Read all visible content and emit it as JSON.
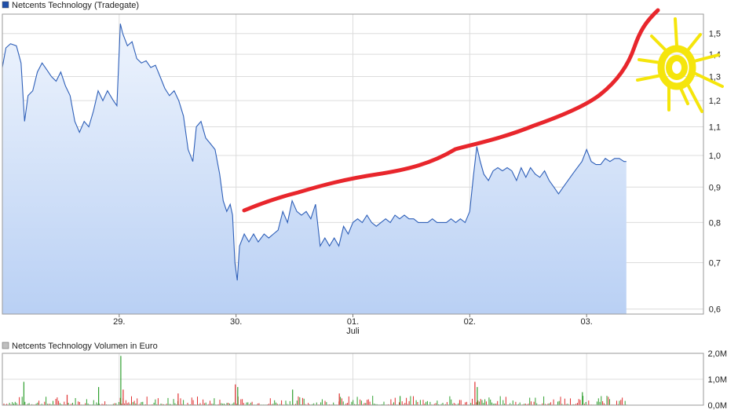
{
  "chart_data": [
    {
      "type": "area",
      "legend": "Netcents Technology (Tradegate)",
      "legend_color": "#1f4fa8",
      "line_color": "#2e5fb8",
      "fill_top": "#eef4fd",
      "fill_bottom": "#b9d0f4",
      "y_scale": "log",
      "ylim": [
        0.59,
        1.6
      ],
      "y_ticks": [
        {
          "value": 0.6,
          "label": "0,6"
        },
        {
          "value": 0.7,
          "label": "0,7"
        },
        {
          "value": 0.8,
          "label": "0,8"
        },
        {
          "value": 0.9,
          "label": "0,9"
        },
        {
          "value": 1.0,
          "label": "1,0"
        },
        {
          "value": 1.1,
          "label": "1,1"
        },
        {
          "value": 1.2,
          "label": "1,2"
        },
        {
          "value": 1.3,
          "label": "1,3"
        },
        {
          "value": 1.4,
          "label": "1,4"
        },
        {
          "value": 1.5,
          "label": "1,5"
        }
      ],
      "x_ticks": [
        {
          "pos": 1.0,
          "label": "29."
        },
        {
          "pos": 2.0,
          "label": "30."
        },
        {
          "pos": 3.0,
          "label": "01.",
          "sub": "Juli"
        },
        {
          "pos": 4.0,
          "label": "02."
        },
        {
          "pos": 5.0,
          "label": "03."
        }
      ],
      "xlim": [
        0.0,
        6.0
      ],
      "grid": true,
      "legend_position": "top-left",
      "points": [
        [
          0.0,
          1.34
        ],
        [
          0.03,
          1.43
        ],
        [
          0.07,
          1.45
        ],
        [
          0.12,
          1.44
        ],
        [
          0.16,
          1.36
        ],
        [
          0.19,
          1.12
        ],
        [
          0.22,
          1.22
        ],
        [
          0.26,
          1.24
        ],
        [
          0.3,
          1.32
        ],
        [
          0.34,
          1.36
        ],
        [
          0.38,
          1.33
        ],
        [
          0.42,
          1.3
        ],
        [
          0.46,
          1.28
        ],
        [
          0.5,
          1.32
        ],
        [
          0.54,
          1.26
        ],
        [
          0.58,
          1.22
        ],
        [
          0.62,
          1.12
        ],
        [
          0.66,
          1.08
        ],
        [
          0.7,
          1.12
        ],
        [
          0.74,
          1.1
        ],
        [
          0.78,
          1.16
        ],
        [
          0.82,
          1.24
        ],
        [
          0.86,
          1.2
        ],
        [
          0.9,
          1.24
        ],
        [
          0.95,
          1.2
        ],
        [
          0.98,
          1.18
        ],
        [
          1.01,
          1.55
        ],
        [
          1.03,
          1.5
        ],
        [
          1.07,
          1.44
        ],
        [
          1.11,
          1.46
        ],
        [
          1.15,
          1.38
        ],
        [
          1.19,
          1.36
        ],
        [
          1.23,
          1.37
        ],
        [
          1.27,
          1.34
        ],
        [
          1.31,
          1.35
        ],
        [
          1.35,
          1.3
        ],
        [
          1.39,
          1.25
        ],
        [
          1.43,
          1.22
        ],
        [
          1.47,
          1.24
        ],
        [
          1.51,
          1.2
        ],
        [
          1.55,
          1.14
        ],
        [
          1.59,
          1.02
        ],
        [
          1.63,
          0.98
        ],
        [
          1.66,
          1.1
        ],
        [
          1.7,
          1.12
        ],
        [
          1.74,
          1.06
        ],
        [
          1.78,
          1.04
        ],
        [
          1.82,
          1.02
        ],
        [
          1.86,
          0.94
        ],
        [
          1.89,
          0.86
        ],
        [
          1.92,
          0.83
        ],
        [
          1.95,
          0.85
        ],
        [
          1.97,
          0.82
        ],
        [
          1.99,
          0.7
        ],
        [
          2.01,
          0.66
        ],
        [
          2.03,
          0.74
        ],
        [
          2.07,
          0.77
        ],
        [
          2.11,
          0.75
        ],
        [
          2.15,
          0.77
        ],
        [
          2.19,
          0.75
        ],
        [
          2.24,
          0.77
        ],
        [
          2.28,
          0.76
        ],
        [
          2.32,
          0.77
        ],
        [
          2.36,
          0.78
        ],
        [
          2.4,
          0.83
        ],
        [
          2.44,
          0.8
        ],
        [
          2.48,
          0.86
        ],
        [
          2.52,
          0.83
        ],
        [
          2.56,
          0.82
        ],
        [
          2.6,
          0.83
        ],
        [
          2.64,
          0.81
        ],
        [
          2.68,
          0.85
        ],
        [
          2.72,
          0.74
        ],
        [
          2.76,
          0.76
        ],
        [
          2.8,
          0.74
        ],
        [
          2.84,
          0.76
        ],
        [
          2.88,
          0.74
        ],
        [
          2.92,
          0.79
        ],
        [
          2.96,
          0.77
        ],
        [
          3.0,
          0.8
        ],
        [
          3.04,
          0.81
        ],
        [
          3.08,
          0.8
        ],
        [
          3.12,
          0.82
        ],
        [
          3.16,
          0.8
        ],
        [
          3.2,
          0.79
        ],
        [
          3.24,
          0.8
        ],
        [
          3.28,
          0.81
        ],
        [
          3.32,
          0.8
        ],
        [
          3.36,
          0.82
        ],
        [
          3.4,
          0.81
        ],
        [
          3.44,
          0.82
        ],
        [
          3.48,
          0.81
        ],
        [
          3.52,
          0.81
        ],
        [
          3.56,
          0.8
        ],
        [
          3.6,
          0.8
        ],
        [
          3.64,
          0.8
        ],
        [
          3.68,
          0.81
        ],
        [
          3.72,
          0.8
        ],
        [
          3.76,
          0.8
        ],
        [
          3.8,
          0.8
        ],
        [
          3.84,
          0.81
        ],
        [
          3.88,
          0.8
        ],
        [
          3.92,
          0.81
        ],
        [
          3.96,
          0.8
        ],
        [
          4.0,
          0.83
        ],
        [
          4.03,
          0.93
        ],
        [
          4.06,
          1.03
        ],
        [
          4.09,
          0.98
        ],
        [
          4.12,
          0.94
        ],
        [
          4.16,
          0.92
        ],
        [
          4.2,
          0.95
        ],
        [
          4.24,
          0.96
        ],
        [
          4.28,
          0.95
        ],
        [
          4.32,
          0.96
        ],
        [
          4.36,
          0.95
        ],
        [
          4.4,
          0.92
        ],
        [
          4.44,
          0.96
        ],
        [
          4.48,
          0.93
        ],
        [
          4.52,
          0.96
        ],
        [
          4.56,
          0.94
        ],
        [
          4.6,
          0.93
        ],
        [
          4.64,
          0.95
        ],
        [
          4.68,
          0.92
        ],
        [
          4.72,
          0.9
        ],
        [
          4.76,
          0.88
        ],
        [
          4.8,
          0.9
        ],
        [
          4.84,
          0.92
        ],
        [
          4.88,
          0.94
        ],
        [
          4.92,
          0.96
        ],
        [
          4.96,
          0.98
        ],
        [
          5.0,
          1.02
        ],
        [
          5.04,
          0.98
        ],
        [
          5.08,
          0.97
        ],
        [
          5.12,
          0.97
        ],
        [
          5.16,
          0.99
        ],
        [
          5.2,
          0.98
        ],
        [
          5.24,
          0.99
        ],
        [
          5.28,
          0.99
        ],
        [
          5.32,
          0.98
        ],
        [
          5.34,
          0.98
        ]
      ]
    },
    {
      "type": "bar",
      "legend": "Netcents Technology Volumen in Euro",
      "legend_color": "#bfbfbf",
      "ylim": [
        0,
        2.0
      ],
      "y_ticks": [
        {
          "value": 0,
          "label": "0,0M"
        },
        {
          "value": 1,
          "label": "1,0M"
        },
        {
          "value": 2,
          "label": "2,0M"
        }
      ],
      "up_color": "#e03030",
      "down_color": "#30a030",
      "spikes": [
        {
          "x": 0.18,
          "v": 0.9,
          "c": "down"
        },
        {
          "x": 0.82,
          "v": 0.7,
          "c": "down"
        },
        {
          "x": 1.01,
          "v": 1.9,
          "c": "down"
        },
        {
          "x": 1.03,
          "v": 0.6,
          "c": "up"
        },
        {
          "x": 1.99,
          "v": 0.8,
          "c": "up"
        },
        {
          "x": 2.01,
          "v": 0.7,
          "c": "down"
        },
        {
          "x": 2.48,
          "v": 0.6,
          "c": "down"
        },
        {
          "x": 4.04,
          "v": 0.9,
          "c": "up"
        },
        {
          "x": 4.06,
          "v": 0.7,
          "c": "down"
        },
        {
          "x": 4.96,
          "v": 0.5,
          "c": "down"
        },
        {
          "x": 2.88,
          "v": 0.45,
          "c": "up"
        },
        {
          "x": 0.55,
          "v": 0.4,
          "c": "up"
        },
        {
          "x": 1.5,
          "v": 0.45,
          "c": "up"
        },
        {
          "x": 3.4,
          "v": 0.35,
          "c": "down"
        }
      ]
    }
  ],
  "annotation": {
    "red_trend_color": "#e8262c",
    "sun_color": "#f5e50c"
  }
}
